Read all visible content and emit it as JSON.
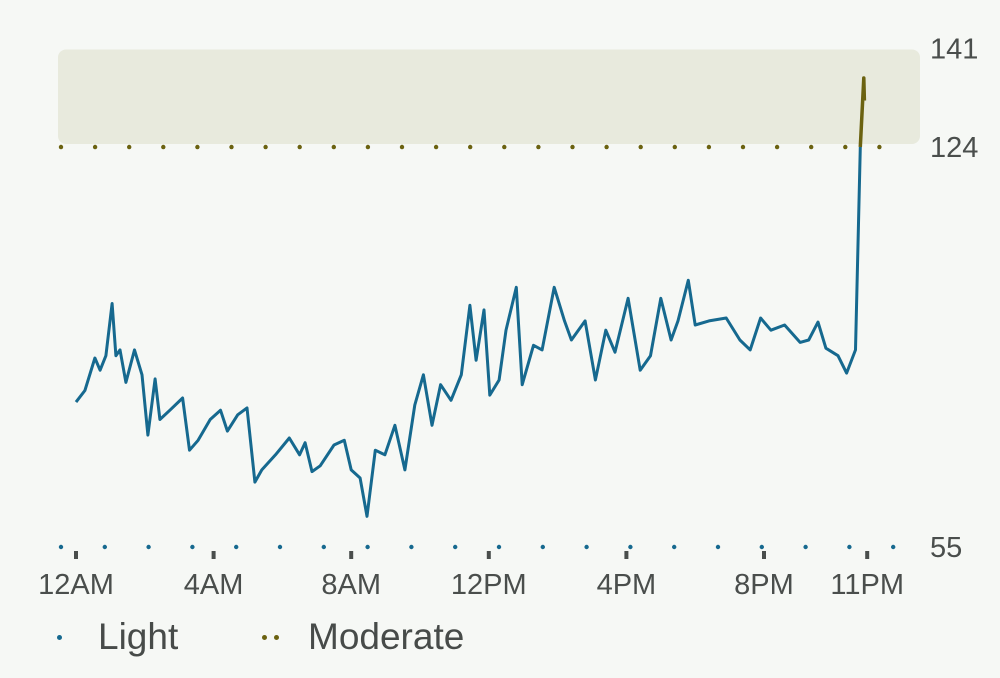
{
  "chart_data": {
    "type": "line",
    "title": "",
    "xlabel": "",
    "ylabel": "",
    "xlim": [
      0,
      23.6
    ],
    "ylim": [
      55,
      141
    ],
    "y_ticks": [
      55,
      124,
      141
    ],
    "x_ticks": [
      {
        "hour": 0,
        "label": "12AM"
      },
      {
        "hour": 4,
        "label": "4AM"
      },
      {
        "hour": 8,
        "label": "8AM"
      },
      {
        "hour": 12,
        "label": "12PM"
      },
      {
        "hour": 16,
        "label": "4PM"
      },
      {
        "hour": 20,
        "label": "8PM"
      },
      {
        "hour": 23,
        "label": "11PM"
      }
    ],
    "zones": [
      {
        "name": "Light",
        "range": [
          55,
          124
        ],
        "color": "#16698f"
      },
      {
        "name": "Moderate",
        "range": [
          124,
          141
        ],
        "color": "#6b6210"
      }
    ],
    "zone_band_color": "#e8eadd",
    "grid": false,
    "legend_placement": "bottom-left",
    "series": [
      {
        "x": [
          0,
          0.26,
          0.55,
          0.7,
          0.87,
          1.05,
          1.16,
          1.28,
          1.45,
          1.7,
          1.92,
          2.09,
          2.3,
          2.44,
          2.73,
          3.1,
          3.3,
          3.55,
          3.9,
          4.2,
          4.4,
          4.7,
          4.97,
          5.2,
          5.4,
          5.8,
          6.2,
          6.5,
          6.66,
          6.86,
          7.1,
          7.5,
          7.8,
          8.0,
          8.26,
          8.46,
          8.7,
          8.98,
          9.27,
          9.56,
          9.85,
          10.1,
          10.35,
          10.6,
          10.9,
          11.2,
          11.45,
          11.63,
          11.86,
          12.03,
          12.3,
          12.5,
          12.8,
          12.97,
          13.3,
          13.55,
          13.9,
          14.2,
          14.4,
          14.8,
          15.1,
          15.4,
          15.67,
          16.05,
          16.4,
          16.7,
          17.0,
          17.3,
          17.5,
          17.8,
          18.0,
          18.4,
          18.9,
          19.3,
          19.6,
          19.9,
          20.2,
          20.6,
          21.05,
          21.3,
          21.57,
          21.8,
          22.15,
          22.4,
          22.66,
          22.8,
          22.9,
          22.92
        ],
        "y": [
          80,
          82,
          87.6,
          85.5,
          88,
          97,
          88,
          89,
          83.4,
          89,
          84.7,
          74.3,
          84,
          77,
          78.6,
          80.7,
          71.7,
          73.4,
          77,
          78.6,
          75,
          77.8,
          79,
          66.2,
          68.3,
          70.9,
          73.8,
          70.9,
          73,
          68,
          69,
          72.6,
          73.4,
          68.3,
          66.9,
          60.3,
          71.7,
          70.9,
          76,
          68.3,
          79.5,
          84.7,
          76,
          83,
          80.3,
          84.7,
          96.7,
          87.2,
          95.9,
          81.2,
          83.8,
          92.4,
          99.8,
          83,
          89.8,
          89,
          99.8,
          94,
          90.7,
          94,
          83.8,
          92.4,
          88.6,
          97.9,
          85.5,
          88,
          97.9,
          90.7,
          94,
          101,
          93.3,
          94,
          94.5,
          90.7,
          89,
          94.5,
          92.4,
          93.3,
          90.3,
          90.7,
          93.8,
          89.3,
          88,
          85,
          89,
          124,
          135.9,
          132
        ]
      }
    ]
  },
  "legend": {
    "items": [
      {
        "label": "Light",
        "color": "#16698f"
      },
      {
        "label": "Moderate",
        "color": "#6b6210"
      }
    ]
  }
}
